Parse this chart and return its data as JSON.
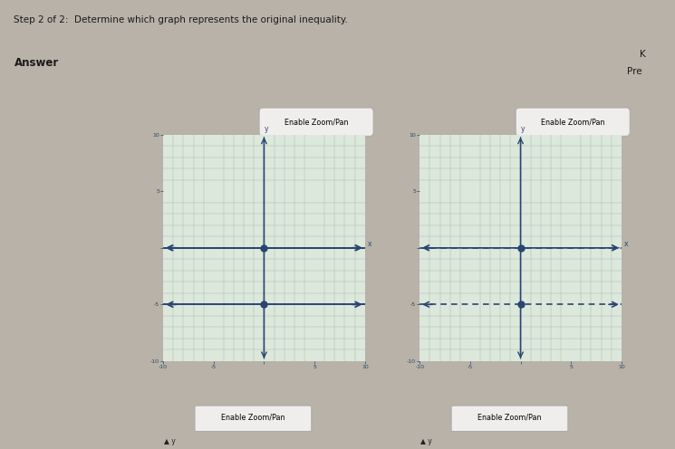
{
  "page_bg": "#b8b2a8",
  "page_title": "Step 2 of 2:  Determine which graph represents the original inequality.",
  "answer_label": "Answer",
  "right_labels": [
    "K",
    "Pre"
  ],
  "top_bar_color": "#d8d4ce",
  "content_bg": "#b8b2a8",
  "panel_bg": "#c0bab2",
  "inner_bg": "#dce8dc",
  "button_color": "#f0eeec",
  "button_border": "#aaaaaa",
  "axis_color": "#2a4570",
  "grid_color": "#a8bca8",
  "tick_color": "#2a4570",
  "dot_color": "#2a4570",
  "dot_size": 25,
  "graphs": [
    {
      "button_text": "Enable Zoom/Pan",
      "lines": [
        {
          "y": 0,
          "style": "solid",
          "color": "#2a4570",
          "lw": 1.4,
          "dot_x": 0,
          "dot_y": 0
        },
        {
          "y": -5,
          "style": "solid",
          "color": "#2a4570",
          "lw": 1.4,
          "dot_x": 0,
          "dot_y": -5
        }
      ]
    },
    {
      "button_text": "Enable Zoom/Pan",
      "lines": [
        {
          "y": 0,
          "style": "dashed",
          "color": "#2a4570",
          "lw": 1.2,
          "dot_x": 0,
          "dot_y": 0
        },
        {
          "y": -5,
          "style": "dashed",
          "color": "#2a4570",
          "lw": 1.2,
          "dot_x": 0,
          "dot_y": -5
        }
      ]
    }
  ],
  "xlim": [
    -10,
    10
  ],
  "ylim": [
    -10,
    10
  ]
}
